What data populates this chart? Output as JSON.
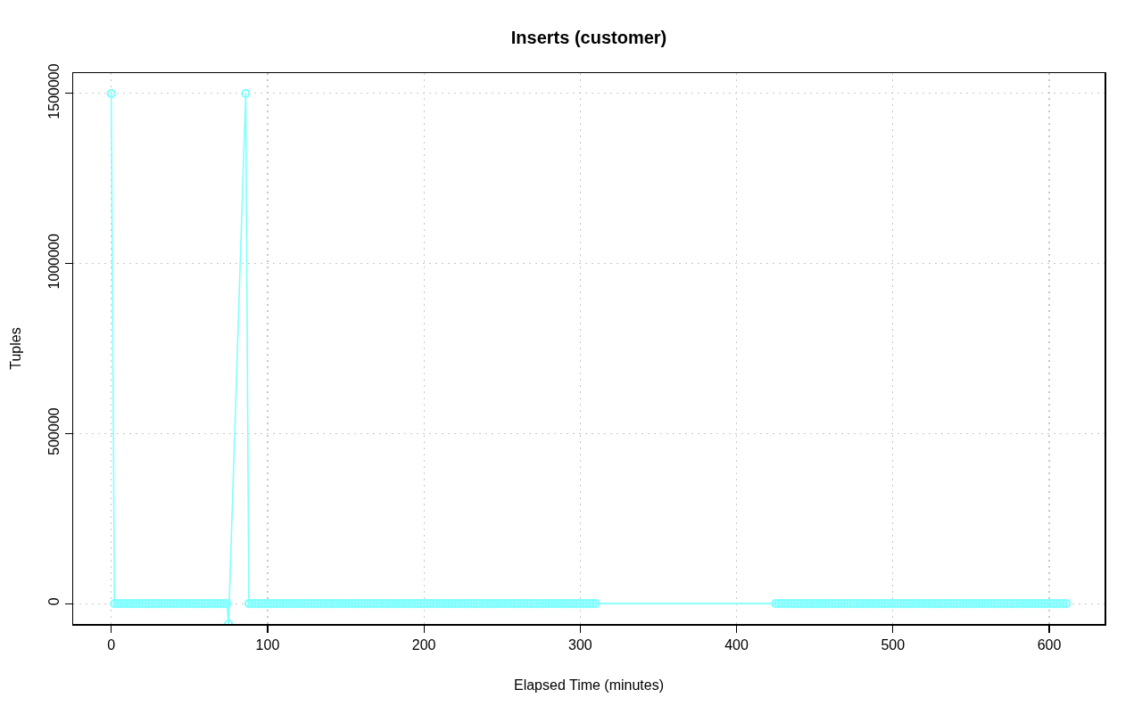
{
  "chart_data": {
    "type": "line",
    "title": "Inserts (customer)",
    "xlabel": "Elapsed Time (minutes)",
    "ylabel": "Tuples",
    "x": [
      0,
      2,
      4,
      6,
      8,
      10,
      12,
      14,
      16,
      18,
      20,
      22,
      24,
      26,
      28,
      30,
      32,
      34,
      36,
      38,
      40,
      42,
      44,
      46,
      48,
      50,
      52,
      54,
      56,
      58,
      60,
      62,
      64,
      66,
      68,
      70,
      72,
      74,
      75,
      86,
      88,
      90,
      92,
      94,
      96,
      98,
      100,
      102,
      104,
      106,
      108,
      110,
      112,
      114,
      116,
      118,
      120,
      122,
      124,
      126,
      128,
      130,
      132,
      134,
      136,
      138,
      140,
      142,
      144,
      146,
      148,
      150,
      152,
      154,
      156,
      158,
      160,
      162,
      164,
      166,
      168,
      170,
      172,
      174,
      176,
      178,
      180,
      182,
      184,
      186,
      188,
      190,
      192,
      194,
      196,
      198,
      200,
      202,
      204,
      206,
      208,
      210,
      212,
      214,
      216,
      218,
      220,
      222,
      224,
      226,
      228,
      230,
      232,
      234,
      236,
      238,
      240,
      242,
      244,
      246,
      248,
      250,
      252,
      254,
      256,
      258,
      260,
      262,
      264,
      266,
      268,
      270,
      272,
      274,
      276,
      278,
      280,
      282,
      284,
      286,
      288,
      290,
      292,
      294,
      296,
      298,
      300,
      302,
      304,
      306,
      308,
      310,
      425,
      427,
      429,
      431,
      433,
      435,
      437,
      439,
      441,
      443,
      445,
      447,
      449,
      451,
      453,
      455,
      457,
      459,
      461,
      463,
      465,
      467,
      469,
      471,
      473,
      475,
      477,
      479,
      481,
      483,
      485,
      487,
      489,
      491,
      493,
      495,
      497,
      499,
      501,
      503,
      505,
      507,
      509,
      511,
      513,
      515,
      517,
      519,
      521,
      523,
      525,
      527,
      529,
      531,
      533,
      535,
      537,
      539,
      541,
      543,
      545,
      547,
      549,
      551,
      553,
      555,
      557,
      559,
      561,
      563,
      565,
      567,
      569,
      571,
      573,
      575,
      577,
      579,
      581,
      583,
      585,
      587,
      589,
      591,
      593,
      595,
      597,
      599,
      601,
      603,
      605,
      607,
      609,
      611
    ],
    "series": [
      {
        "color": "#80ffff",
        "values": [
          1500000,
          0,
          0,
          0,
          0,
          0,
          0,
          0,
          0,
          0,
          0,
          0,
          0,
          0,
          0,
          0,
          0,
          0,
          0,
          0,
          0,
          0,
          0,
          0,
          0,
          0,
          0,
          0,
          0,
          0,
          0,
          0,
          0,
          0,
          0,
          0,
          0,
          0,
          -60000,
          1500000,
          0,
          0,
          0,
          0,
          0,
          0,
          0,
          0,
          0,
          0,
          0,
          0,
          0,
          0,
          0,
          0,
          0,
          0,
          0,
          0,
          0,
          0,
          0,
          0,
          0,
          0,
          0,
          0,
          0,
          0,
          0,
          0,
          0,
          0,
          0,
          0,
          0,
          0,
          0,
          0,
          0,
          0,
          0,
          0,
          0,
          0,
          0,
          0,
          0,
          0,
          0,
          0,
          0,
          0,
          0,
          0,
          0,
          0,
          0,
          0,
          0,
          0,
          0,
          0,
          0,
          0,
          0,
          0,
          0,
          0,
          0,
          0,
          0,
          0,
          0,
          0,
          0,
          0,
          0,
          0,
          0,
          0,
          0,
          0,
          0,
          0,
          0,
          0,
          0,
          0,
          0,
          0,
          0,
          0,
          0,
          0,
          0,
          0,
          0,
          0,
          0,
          0,
          0,
          0,
          0,
          0,
          0,
          0,
          0,
          0,
          0,
          0,
          0,
          0,
          0,
          0,
          0,
          0,
          0,
          0,
          0,
          0,
          0,
          0,
          0,
          0,
          0,
          0,
          0,
          0,
          0,
          0,
          0,
          0,
          0,
          0,
          0,
          0,
          0,
          0,
          0,
          0,
          0,
          0,
          0,
          0,
          0,
          0,
          0,
          0,
          0,
          0,
          0,
          0,
          0,
          0,
          0,
          0,
          0,
          0,
          0,
          0,
          0,
          0,
          0,
          0,
          0,
          0,
          0,
          0,
          0,
          0,
          0,
          0,
          0,
          0,
          0,
          0,
          0,
          0,
          0,
          0,
          0,
          0,
          0,
          0,
          0,
          0,
          0,
          0,
          0,
          0,
          0,
          0,
          0,
          0,
          0,
          0,
          0,
          0,
          0,
          0,
          0,
          0,
          0,
          0
        ]
      }
    ],
    "xlim": [
      -24.4,
      635.4
    ],
    "ylim": [
      -60000,
      1560000
    ],
    "xticks": [
      0,
      100,
      200,
      300,
      400,
      500,
      600
    ],
    "yticks": [
      0,
      500000,
      1000000,
      1500000
    ],
    "grid": true,
    "marker": "circle",
    "line_style": "solid"
  }
}
